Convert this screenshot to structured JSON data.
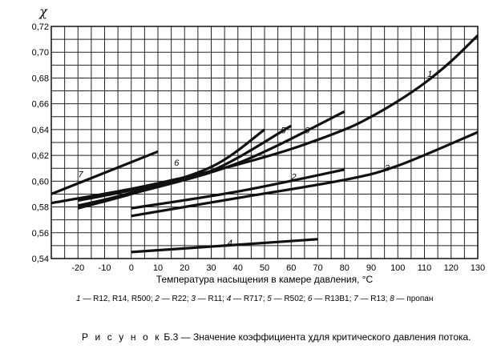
{
  "chart_data": {
    "type": "line",
    "ylabel": "χ",
    "xlabel": "Температура насыщения в камере давления, °C",
    "xlim": [
      -30,
      130
    ],
    "ylim": [
      0.54,
      0.72
    ],
    "grid": true,
    "xticks": [
      -20,
      -10,
      0,
      10,
      20,
      30,
      40,
      50,
      60,
      70,
      80,
      90,
      100,
      110,
      120,
      130
    ],
    "yticks": [
      0.54,
      0.56,
      0.58,
      0.6,
      0.62,
      0.64,
      0.66,
      0.68,
      0.7,
      0.72
    ],
    "ytick_labels": [
      "0,54",
      "0,56",
      "0,58",
      "0,60",
      "0,62",
      "0,64",
      "0,66",
      "0,68",
      "0,70",
      "0,72"
    ],
    "series": [
      {
        "name": "1",
        "label_at": [
          112,
          0.681
        ],
        "x": [
          -30,
          0,
          20,
          40,
          60,
          80,
          90,
          100,
          110,
          120,
          130
        ],
        "y": [
          0.583,
          0.594,
          0.603,
          0.613,
          0.625,
          0.64,
          0.65,
          0.662,
          0.676,
          0.693,
          0.713
        ]
      },
      {
        "name": "2",
        "label_at": [
          61,
          0.601
        ],
        "x": [
          0,
          40,
          80
        ],
        "y": [
          0.579,
          0.592,
          0.609
        ]
      },
      {
        "name": "3",
        "label_at": [
          96,
          0.608
        ],
        "x": [
          0,
          40,
          80,
          100,
          130
        ],
        "y": [
          0.573,
          0.587,
          0.601,
          0.612,
          0.638
        ]
      },
      {
        "name": "4",
        "label_at": [
          37,
          0.55
        ],
        "x": [
          0,
          70
        ],
        "y": [
          0.545,
          0.555
        ]
      },
      {
        "name": "5",
        "label_at": [
          57,
          0.637
        ],
        "x": [
          -20,
          0,
          30,
          60
        ],
        "y": [
          0.585,
          0.593,
          0.608,
          0.643
        ]
      },
      {
        "name": "6",
        "label_at": [
          17,
          0.612
        ],
        "x": [
          -20,
          0,
          30,
          50
        ],
        "y": [
          0.581,
          0.591,
          0.611,
          0.64
        ]
      },
      {
        "name": "7",
        "label_at": [
          -19,
          0.603
        ],
        "x": [
          -30,
          10
        ],
        "y": [
          0.59,
          0.623
        ]
      },
      {
        "name": "8",
        "label_at": [
          66,
          0.637
        ],
        "x": [
          -20,
          0,
          40,
          80
        ],
        "y": [
          0.579,
          0.59,
          0.614,
          0.654
        ]
      }
    ],
    "legend_text": [
      {
        "num": "1",
        "text": " — R12, R14, R500; "
      },
      {
        "num": "2",
        "text": " — R22; "
      },
      {
        "num": "3",
        "text": " — R11; "
      },
      {
        "num": "4",
        "text": " — R717; "
      },
      {
        "num": "5",
        "text": " — R502; "
      },
      {
        "num": "6",
        "text": " — R13B1; "
      },
      {
        "num": "7",
        "text": " — R13; "
      },
      {
        "num": "8",
        "text": " — пропан"
      }
    ],
    "line_color": "#111111",
    "grid_color": "#222222"
  },
  "caption": {
    "prefix": "Р и с у н о к",
    "text": " Б.3 — Значение коэффициента χдля критического давления потока."
  }
}
